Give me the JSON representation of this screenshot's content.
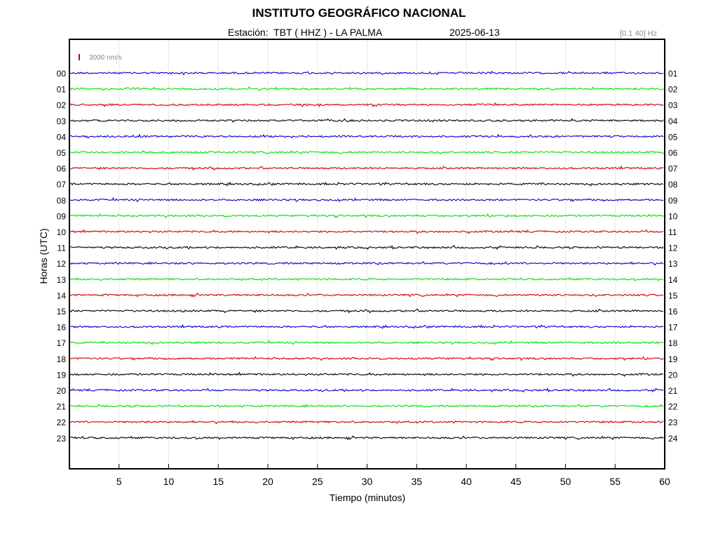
{
  "header": {
    "title": "INSTITUTO GEOGRÁFICO NACIONAL",
    "station_line": "Estación:  TBT ( HHZ ) - LA PALMA",
    "date": "2025-06-13",
    "filter": "[0.1 40] Hz"
  },
  "chart_data": {
    "type": "line",
    "title": "INSTITUTO GEOGRÁFICO NACIONAL",
    "xlabel": "Tiempo (minutos)",
    "ylabel": "Horas (UTC)",
    "xlim": [
      0,
      60
    ],
    "x_ticks": [
      "5",
      "10",
      "15",
      "20",
      "25",
      "30",
      "35",
      "40",
      "45",
      "50",
      "55",
      "60"
    ],
    "y_ticks_left": [
      "00",
      "01",
      "02",
      "03",
      "04",
      "05",
      "06",
      "07",
      "08",
      "09",
      "10",
      "11",
      "12",
      "13",
      "14",
      "15",
      "16",
      "17",
      "18",
      "19",
      "20",
      "21",
      "22",
      "23"
    ],
    "y_ticks_right": [
      "01",
      "02",
      "03",
      "04",
      "05",
      "06",
      "07",
      "08",
      "09",
      "10",
      "11",
      "12",
      "13",
      "14",
      "15",
      "16",
      "17",
      "18",
      "19",
      "20",
      "21",
      "22",
      "23",
      "24"
    ],
    "scale_bar": "3000 nm/s",
    "grid": "vertical",
    "trace_colors": [
      "#0000cc",
      "#00e000",
      "#cc0000",
      "#000000"
    ]
  }
}
